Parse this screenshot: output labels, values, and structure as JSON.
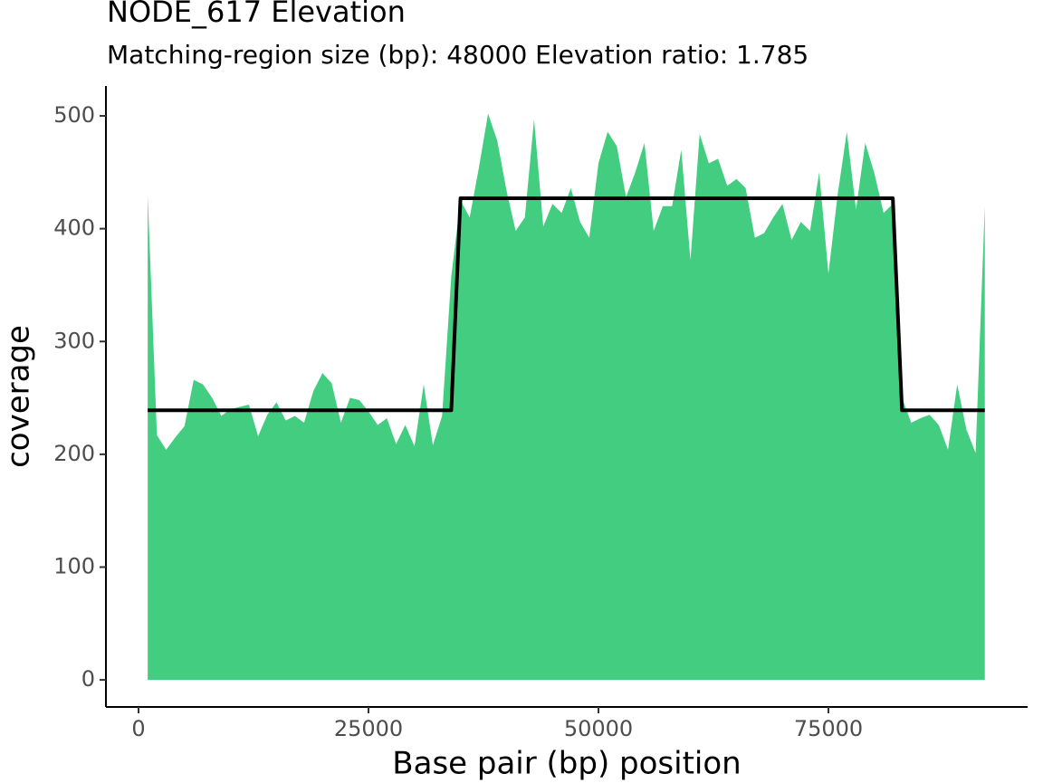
{
  "chart_data": {
    "type": "area",
    "title": "NODE_617 Elevation",
    "subtitle": "Matching-region size (bp): 48000 Elevation ratio: 1.785",
    "x_label": "Base pair (bp) position",
    "y_label": "coverage",
    "x": [
      1000,
      2000,
      3000,
      4000,
      5000,
      6000,
      7000,
      8000,
      9000,
      10000,
      11000,
      12000,
      13000,
      14000,
      15000,
      16000,
      17000,
      18000,
      19000,
      20000,
      21000,
      22000,
      23000,
      24000,
      25000,
      26000,
      27000,
      28000,
      29000,
      30000,
      31000,
      32000,
      33000,
      34000,
      35000,
      36000,
      37000,
      38000,
      39000,
      40000,
      41000,
      42000,
      43000,
      44000,
      45000,
      46000,
      47000,
      48000,
      49000,
      50000,
      51000,
      52000,
      53000,
      54000,
      55000,
      56000,
      57000,
      58000,
      59000,
      60000,
      61000,
      62000,
      63000,
      64000,
      65000,
      66000,
      67000,
      68000,
      69000,
      70000,
      71000,
      72000,
      73000,
      74000,
      75000,
      76000,
      77000,
      78000,
      79000,
      80000,
      81000,
      82000,
      83000,
      84000,
      85000,
      86000,
      87000,
      88000,
      89000,
      90000,
      91000,
      92000
    ],
    "series": [
      {
        "type": "area",
        "color": "#43cd80",
        "values": [
          430,
          217,
          204,
          215,
          225,
          266,
          262,
          250,
          234,
          240,
          242,
          244,
          216,
          235,
          246,
          230,
          234,
          228,
          256,
          272,
          263,
          228,
          250,
          248,
          238,
          226,
          232,
          209,
          226,
          207,
          262,
          208,
          234,
          358,
          425,
          410,
          454,
          502,
          478,
          434,
          398,
          410,
          497,
          402,
          422,
          414,
          436,
          406,
          392,
          458,
          486,
          473,
          428,
          450,
          476,
          398,
          420,
          420,
          470,
          372,
          484,
          458,
          462,
          438,
          444,
          436,
          392,
          396,
          410,
          422,
          390,
          406,
          398,
          450,
          360,
          430,
          486,
          417,
          476,
          449,
          414,
          422,
          250,
          228,
          232,
          235,
          226,
          204,
          262,
          222,
          201,
          420
        ]
      },
      {
        "type": "line",
        "color": "#000000",
        "values": [
          239,
          239,
          239,
          239,
          239,
          239,
          239,
          239,
          239,
          239,
          239,
          239,
          239,
          239,
          239,
          239,
          239,
          239,
          239,
          239,
          239,
          239,
          239,
          239,
          239,
          239,
          239,
          239,
          239,
          239,
          239,
          239,
          239,
          239,
          427,
          427,
          427,
          427,
          427,
          427,
          427,
          427,
          427,
          427,
          427,
          427,
          427,
          427,
          427,
          427,
          427,
          427,
          427,
          427,
          427,
          427,
          427,
          427,
          427,
          427,
          427,
          427,
          427,
          427,
          427,
          427,
          427,
          427,
          427,
          427,
          427,
          427,
          427,
          427,
          427,
          427,
          427,
          427,
          427,
          427,
          427,
          427,
          239,
          239,
          239,
          239,
          239,
          239,
          239,
          239,
          239,
          239
        ]
      }
    ],
    "xlim": [
      -3543,
      96653
    ],
    "xticks": [
      0,
      25000,
      50000,
      75000
    ],
    "ylim": [
      -24,
      526.5
    ],
    "yticks": [
      0,
      100,
      200,
      300,
      400,
      500
    ]
  }
}
